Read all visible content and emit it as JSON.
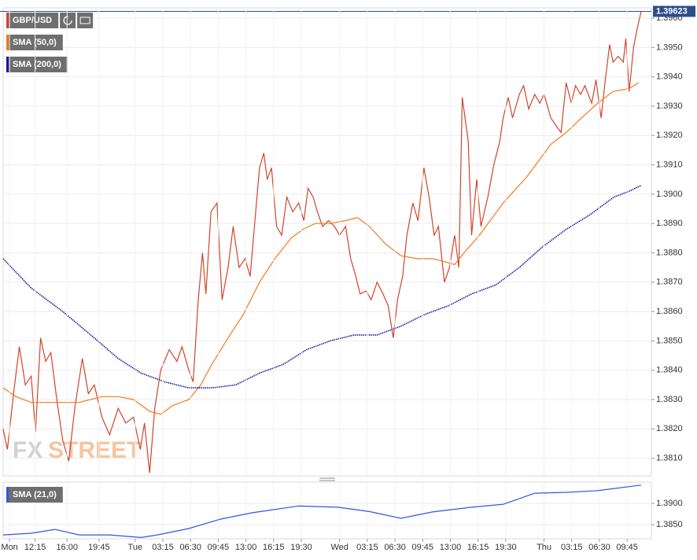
{
  "chart_data": [
    {
      "type": "line",
      "xlim": [
        8.5,
        84.6
      ],
      "ylim": [
        1.3804,
        1.39635
      ],
      "yticks": [
        {
          "value": 1.381,
          "label": "1.3810"
        },
        {
          "value": 1.382,
          "label": "1.3820"
        },
        {
          "value": 1.383,
          "label": "1.3830"
        },
        {
          "value": 1.384,
          "label": "1.3840"
        },
        {
          "value": 1.385,
          "label": "1.3850"
        },
        {
          "value": 1.386,
          "label": "1.3860"
        },
        {
          "value": 1.387,
          "label": "1.3870"
        },
        {
          "value": 1.388,
          "label": "1.3880"
        },
        {
          "value": 1.389,
          "label": "1.3890"
        },
        {
          "value": 1.39,
          "label": "1.3900"
        },
        {
          "value": 1.391,
          "label": "1.3910"
        },
        {
          "value": 1.392,
          "label": "1.3920"
        },
        {
          "value": 1.393,
          "label": "1.3930"
        },
        {
          "value": 1.394,
          "label": "1.3940"
        },
        {
          "value": 1.395,
          "label": "1.3950"
        },
        {
          "value": 1.396,
          "label": "1.3960"
        }
      ],
      "grid": true,
      "last_price": 1.39623,
      "watermark": [
        "FX",
        "STREET"
      ],
      "series": [
        {
          "name": "GBP/USD",
          "color": "#d0452b",
          "x": [
            8.5,
            9.0,
            9.8,
            10.4,
            11.1,
            11.8,
            12.3,
            12.9,
            13.5,
            14.1,
            14.8,
            15.5,
            16.2,
            16.9,
            17.8,
            18.5,
            19.2,
            20.1,
            21.0,
            22.0,
            22.9,
            23.8,
            24.6,
            25.1,
            25.7,
            26.3,
            27.0,
            28.0,
            28.9,
            29.5,
            30.3,
            30.8,
            31.4,
            31.9,
            32.3,
            32.9,
            33.6,
            34.2,
            34.9,
            35.5,
            36.2,
            36.9,
            37.5,
            38.0,
            38.6,
            39.1,
            39.5,
            40.0,
            40.6,
            41.2,
            41.8,
            42.5,
            43.2,
            43.8,
            44.3,
            44.9,
            45.4,
            46.0,
            46.7,
            47.4,
            48.0,
            48.7,
            49.3,
            49.9,
            50.4,
            51.1,
            51.7,
            52.4,
            53.1,
            53.7,
            54.3,
            54.8,
            55.4,
            55.9,
            56.6,
            57.2,
            57.9,
            58.5,
            59.1,
            59.6,
            60.3,
            60.9,
            61.5,
            62.0,
            62.4,
            63.1,
            63.5,
            64.1,
            64.6,
            65.4,
            66.1,
            66.8,
            67.2,
            67.8,
            68.3,
            69.1,
            69.6,
            70.2,
            70.9,
            71.5,
            72.0,
            72.8,
            73.5,
            74.0,
            74.6,
            75.2,
            75.7,
            76.3,
            76.8,
            77.6,
            78.1,
            78.7,
            79.2,
            79.7,
            80.1,
            80.7,
            81.3,
            81.6,
            82.0,
            82.5,
            82.9,
            83.4
          ],
          "values": [
            1.382,
            1.3813,
            1.3834,
            1.3848,
            1.3835,
            1.3838,
            1.3819,
            1.3851,
            1.3843,
            1.3846,
            1.383,
            1.3816,
            1.3809,
            1.3827,
            1.3844,
            1.3832,
            1.3835,
            1.3824,
            1.3818,
            1.3827,
            1.3822,
            1.3824,
            1.3813,
            1.3822,
            1.3805,
            1.3827,
            1.384,
            1.3847,
            1.3843,
            1.3848,
            1.384,
            1.3836,
            1.3864,
            1.388,
            1.3866,
            1.3894,
            1.3897,
            1.3864,
            1.3875,
            1.3889,
            1.3875,
            1.3878,
            1.3872,
            1.3889,
            1.3909,
            1.3914,
            1.3905,
            1.3909,
            1.3889,
            1.3886,
            1.3899,
            1.3894,
            1.3897,
            1.3891,
            1.3902,
            1.3899,
            1.3894,
            1.3889,
            1.3891,
            1.3889,
            1.3886,
            1.3889,
            1.3878,
            1.3872,
            1.3866,
            1.3867,
            1.3864,
            1.387,
            1.3866,
            1.3862,
            1.3851,
            1.3864,
            1.3872,
            1.3886,
            1.3897,
            1.3891,
            1.3909,
            1.3899,
            1.3886,
            1.3889,
            1.387,
            1.3875,
            1.3886,
            1.3875,
            1.3933,
            1.3918,
            1.3886,
            1.3905,
            1.3889,
            1.3899,
            1.391,
            1.3918,
            1.3926,
            1.3933,
            1.3926,
            1.3934,
            1.3937,
            1.3929,
            1.3934,
            1.3931,
            1.3934,
            1.3926,
            1.3923,
            1.3921,
            1.3938,
            1.3931,
            1.3937,
            1.3934,
            1.3937,
            1.3931,
            1.3939,
            1.3926,
            1.3939,
            1.3951,
            1.3945,
            1.3947,
            1.3945,
            1.3953,
            1.3935,
            1.395,
            1.3956,
            1.39623
          ]
        },
        {
          "name": "SMA (50,0)",
          "color": "#f07a1e",
          "x": [
            8.5,
            10.0,
            11.8,
            13.7,
            17.4,
            20.1,
            22.0,
            23.8,
            25.7,
            27.0,
            28.4,
            30.3,
            31.7,
            33.0,
            34.9,
            36.7,
            38.6,
            40.4,
            42.3,
            43.7,
            45.1,
            46.9,
            48.7,
            50.1,
            51.5,
            53.4,
            55.2,
            57.1,
            58.9,
            60.3,
            61.5,
            62.6,
            64.4,
            67.2,
            70.0,
            72.8,
            74.6,
            76.4,
            78.3,
            80.1,
            82.0,
            83.1
          ],
          "values": [
            1.3834,
            1.3831,
            1.3829,
            1.3829,
            1.3829,
            1.3831,
            1.3831,
            1.383,
            1.3826,
            1.3825,
            1.3828,
            1.383,
            1.3835,
            1.3842,
            1.3851,
            1.3859,
            1.387,
            1.3878,
            1.3885,
            1.3888,
            1.389,
            1.389,
            1.3891,
            1.3892,
            1.3889,
            1.3883,
            1.3879,
            1.3878,
            1.3878,
            1.3877,
            1.3876,
            1.388,
            1.3886,
            1.3897,
            1.3906,
            1.3917,
            1.3921,
            1.3926,
            1.3931,
            1.3935,
            1.3936,
            1.3938
          ]
        },
        {
          "name": "SMA (200,0)",
          "color": "#17179c",
          "x": [
            8.5,
            11.8,
            15.5,
            19.2,
            22.0,
            24.7,
            27.5,
            30.3,
            33.0,
            35.8,
            38.6,
            41.4,
            44.1,
            46.9,
            49.7,
            52.4,
            55.2,
            58.0,
            60.8,
            63.5,
            66.3,
            69.1,
            71.8,
            74.6,
            77.4,
            80.2,
            82.0,
            83.4
          ],
          "values": [
            1.3878,
            1.3868,
            1.386,
            1.3851,
            1.3844,
            1.3839,
            1.3836,
            1.3834,
            1.3834,
            1.3835,
            1.3839,
            1.3842,
            1.3847,
            1.385,
            1.3852,
            1.3852,
            1.3855,
            1.3859,
            1.3862,
            1.3866,
            1.3869,
            1.3875,
            1.3882,
            1.3888,
            1.3893,
            1.3899,
            1.3901,
            1.3903
          ]
        }
      ]
    },
    {
      "type": "line",
      "xlim": [
        8.5,
        84.6
      ],
      "ylim": [
        1.3817,
        1.395
      ],
      "yticks": [
        {
          "value": 1.385,
          "label": "1.3850"
        },
        {
          "value": 1.39,
          "label": "1.3900"
        }
      ],
      "grid": true,
      "xticks": [
        {
          "value": 9.25,
          "label": "Mon"
        },
        {
          "value": 12.25,
          "label": "12:15"
        },
        {
          "value": 16,
          "label": "16:00"
        },
        {
          "value": 19.75,
          "label": "19:45"
        },
        {
          "value": 24,
          "label": "Tue"
        },
        {
          "value": 27.25,
          "label": "03:15"
        },
        {
          "value": 30.5,
          "label": "06:30"
        },
        {
          "value": 33.75,
          "label": "09:45"
        },
        {
          "value": 37,
          "label": "13:00"
        },
        {
          "value": 40.25,
          "label": "16:15"
        },
        {
          "value": 43.5,
          "label": "19:30"
        },
        {
          "value": 48,
          "label": "Wed"
        },
        {
          "value": 51.25,
          "label": "03:15"
        },
        {
          "value": 54.5,
          "label": "06:30"
        },
        {
          "value": 57.75,
          "label": "09:45"
        },
        {
          "value": 61,
          "label": "13:00"
        },
        {
          "value": 64.25,
          "label": "16:15"
        },
        {
          "value": 67.5,
          "label": "19:30"
        },
        {
          "value": 72,
          "label": "Thu"
        },
        {
          "value": 75.25,
          "label": "03:15"
        },
        {
          "value": 78.5,
          "label": "06:30"
        },
        {
          "value": 81.75,
          "label": "09:45"
        }
      ],
      "series": [
        {
          "name": "SMA (21,0)",
          "color": "#3355dd",
          "x": [
            8.5,
            11.8,
            14.6,
            17.4,
            21.0,
            24.7,
            26.6,
            30.3,
            34.0,
            37.7,
            43.2,
            47.8,
            51.5,
            55.2,
            58.9,
            63.5,
            67.2,
            70.9,
            74.6,
            78.3,
            83.4
          ],
          "values": [
            1.3826,
            1.383,
            1.3839,
            1.3826,
            1.3826,
            1.382,
            1.3826,
            1.3841,
            1.3863,
            1.3878,
            1.3894,
            1.3891,
            1.3881,
            1.3865,
            1.388,
            1.3891,
            1.3898,
            1.3924,
            1.3926,
            1.393,
            1.3943
          ]
        }
      ]
    }
  ]
}
